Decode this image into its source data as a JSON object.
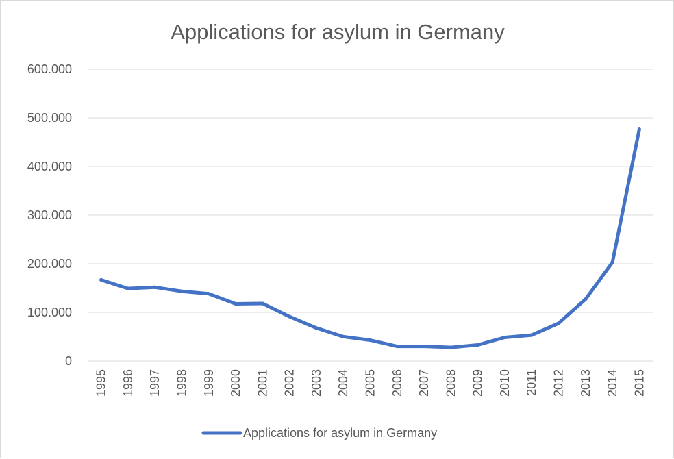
{
  "chart_data": {
    "type": "line",
    "title": "Applications for asylum in Germany",
    "xlabel": "",
    "ylabel": "",
    "ylim": [
      0,
      600000
    ],
    "yticks": [
      0,
      100000,
      200000,
      300000,
      400000,
      500000,
      600000
    ],
    "ytick_labels": [
      "0",
      "100.000",
      "200.000",
      "300.000",
      "400.000",
      "500.000",
      "600.000"
    ],
    "categories": [
      "1995",
      "1996",
      "1997",
      "1998",
      "1999",
      "2000",
      "2001",
      "2002",
      "2003",
      "2004",
      "2005",
      "2006",
      "2007",
      "2008",
      "2009",
      "2010",
      "2011",
      "2012",
      "2013",
      "2014",
      "2015"
    ],
    "series": [
      {
        "name": "Applications for asylum in Germany",
        "color": "#4472c4",
        "values": [
          166951,
          149193,
          151700,
          143429,
          138319,
          117648,
          118306,
          91471,
          67848,
          50152,
          42908,
          30100,
          30303,
          28018,
          33033,
          48589,
          53347,
          77651,
          127023,
          202834,
          476649
        ]
      }
    ],
    "grid": true,
    "legend": "bottom"
  }
}
